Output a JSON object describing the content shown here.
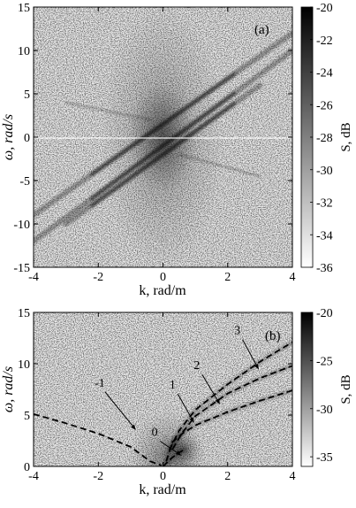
{
  "chart_data": [
    {
      "type": "heatmap",
      "panel_label": "(a)",
      "xlabel": "k,  rad/m",
      "ylabel": "ω, rad/s",
      "xlim": [
        -4,
        4
      ],
      "ylim": [
        -15,
        15
      ],
      "xticks": [
        "-4",
        "-2",
        "0",
        "2",
        "4"
      ],
      "yticks": [
        "15",
        "10",
        "5",
        "0",
        "-5",
        "-10",
        "-15"
      ],
      "colorbar": {
        "label": "S, dB",
        "range": [
          -36,
          -20
        ],
        "ticks": [
          "-20",
          "-22",
          "-24",
          "-26",
          "-28",
          "-30",
          "-32",
          "-34",
          "-36"
        ],
        "colormap": [
          "#ffffff",
          "#000000"
        ]
      },
      "features": [
        {
          "kind": "ridge",
          "points": [
            [
              -4,
              -12
            ],
            [
              4,
              10
            ]
          ]
        },
        {
          "kind": "ridge",
          "points": [
            [
              -4,
              -9
            ],
            [
              4,
              12
            ]
          ]
        },
        {
          "kind": "ridge",
          "points": [
            [
              -3,
              -10
            ],
            [
              3,
              6
            ]
          ]
        },
        {
          "kind": "ridge",
          "points": [
            [
              -3,
              4
            ],
            [
              -0.4,
              2
            ]
          ]
        },
        {
          "kind": "ridge",
          "points": [
            [
              0.5,
              -2
            ],
            [
              3,
              -4.5
            ]
          ]
        }
      ]
    },
    {
      "type": "heatmap",
      "panel_label": "(b)",
      "xlabel": "k,  rad/m",
      "ylabel": "ω, rad/s",
      "xlim": [
        -4,
        4
      ],
      "ylim": [
        0,
        15
      ],
      "xticks": [
        "-4",
        "-2",
        "0",
        "2",
        "4"
      ],
      "yticks": [
        "15",
        "10",
        "5",
        "0"
      ],
      "colorbar": {
        "label": "S, dB",
        "range": [
          -36,
          -20
        ],
        "ticks": [
          "-20",
          "-25",
          "-30",
          "-35"
        ],
        "colormap": [
          "#ffffff",
          "#000000"
        ]
      },
      "series": [
        {
          "points": [
            [
              -4,
              5.1
            ],
            [
              -3,
              4.2
            ],
            [
              -2,
              3.2
            ],
            [
              -1,
              1.9
            ],
            [
              -0.4,
              0.5
            ],
            [
              -0.05,
              0.1
            ]
          ]
        },
        {
          "points": [
            [
              0,
              0
            ],
            [
              0.15,
              0.45
            ],
            [
              0.3,
              0.9
            ],
            [
              0.5,
              1.35
            ],
            [
              0.7,
              1.7
            ]
          ]
        },
        {
          "points": [
            [
              0.1,
              0.5
            ],
            [
              0.3,
              2.4
            ],
            [
              0.6,
              3.2
            ],
            [
              1,
              4.0
            ],
            [
              2,
              5.3
            ],
            [
              3,
              6.4
            ],
            [
              4,
              7.4
            ]
          ]
        },
        {
          "points": [
            [
              0.3,
              1.7
            ],
            [
              0.6,
              3.3
            ],
            [
              1,
              4.9
            ],
            [
              2,
              7.1
            ],
            [
              3,
              8.6
            ],
            [
              4,
              9.8
            ]
          ]
        },
        {
          "points": [
            [
              0.2,
              1.6
            ],
            [
              0.5,
              3.5
            ],
            [
              1,
              5.5
            ],
            [
              2,
              8.0
            ],
            [
              3,
              10.2
            ],
            [
              4,
              12.1
            ]
          ]
        }
      ],
      "annotations": [
        {
          "text": "-1",
          "at": [
            -1.9,
            7.6
          ],
          "arrow_to": [
            -0.85,
            3.6
          ]
        },
        {
          "text": "0",
          "at": [
            -0.2,
            2.8
          ],
          "arrow_to": [
            0.55,
            1.1
          ]
        },
        {
          "text": "1",
          "at": [
            0.35,
            7.4
          ],
          "arrow_to": [
            0.95,
            4.3
          ]
        },
        {
          "text": "2",
          "at": [
            1.1,
            9.3
          ],
          "arrow_to": [
            1.75,
            6.1
          ]
        },
        {
          "text": "3",
          "at": [
            2.35,
            12.7
          ],
          "arrow_to": [
            2.95,
            9.5
          ]
        }
      ]
    }
  ]
}
